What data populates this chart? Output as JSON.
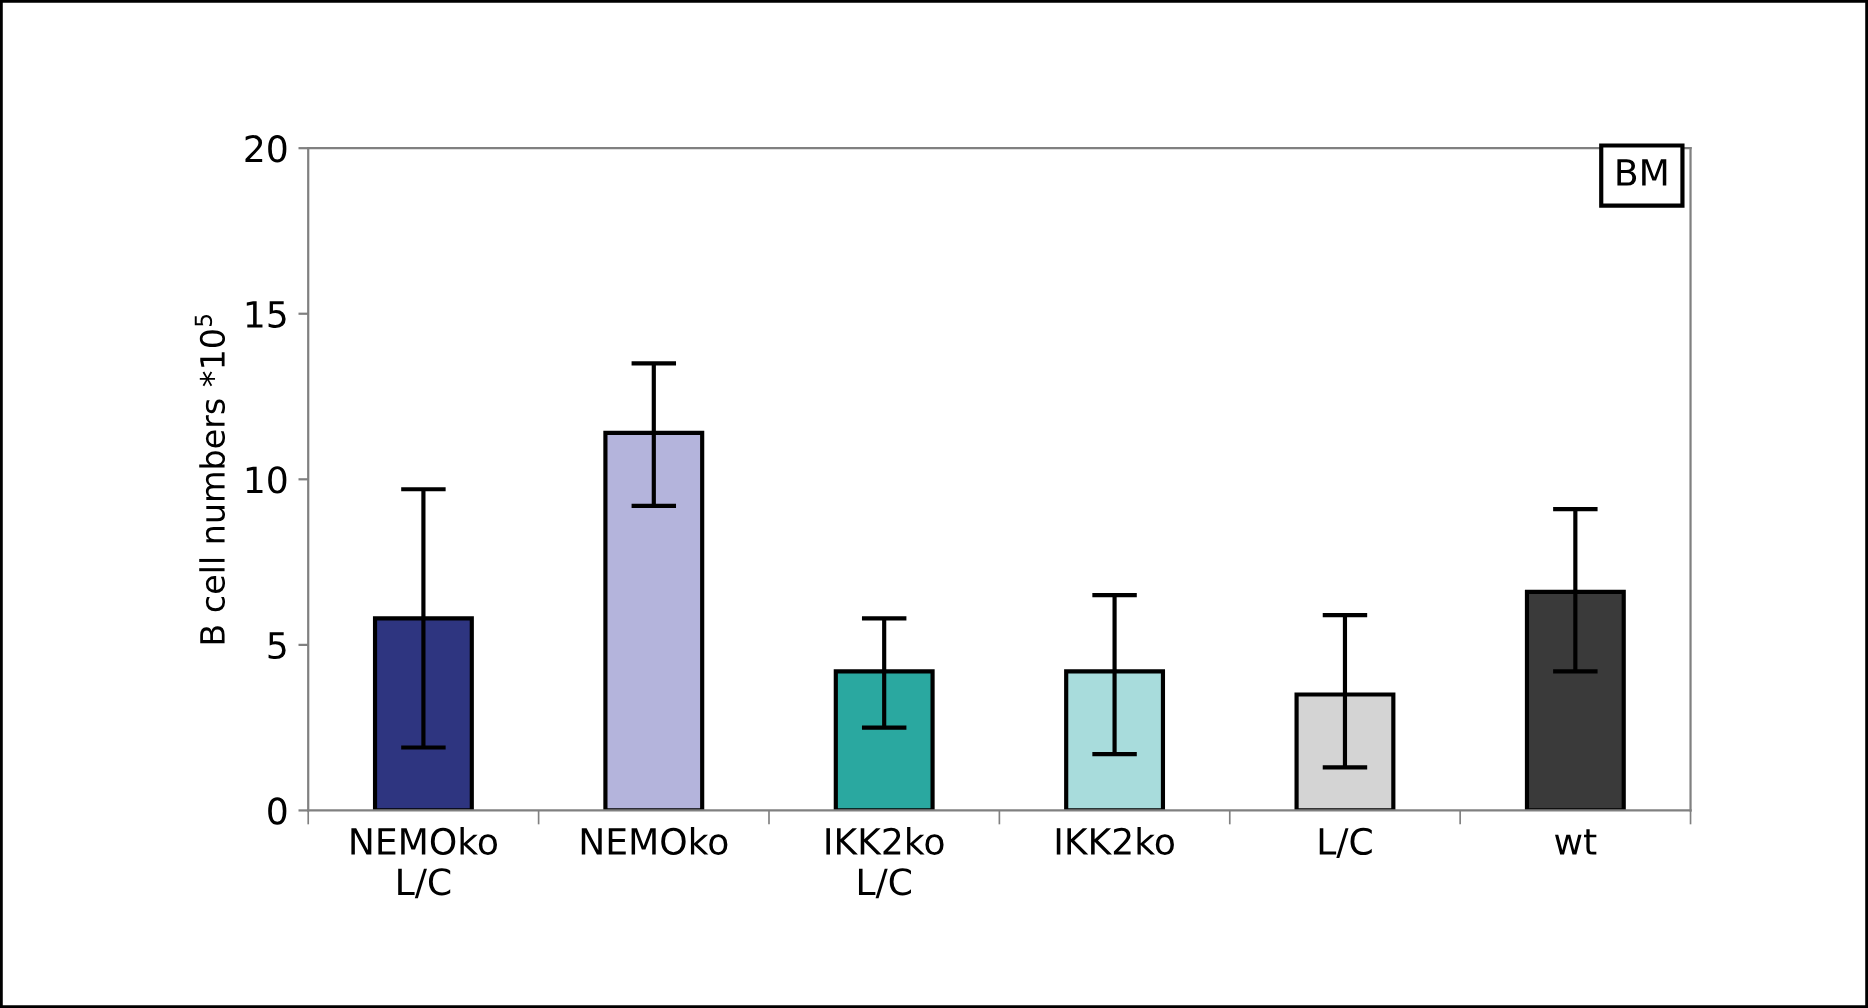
{
  "chart_data": {
    "type": "bar",
    "ylabel": "B cell numbers *10$^{5}$",
    "categories": [
      "NEMOko\nL/C",
      "NEMOko",
      "IKK2ko\nL/C",
      "IKK2ko",
      "L/C",
      "wt"
    ],
    "values": [
      5.8,
      11.4,
      4.2,
      4.2,
      3.5,
      6.6
    ],
    "errors": [
      [
        1.9,
        9.7
      ],
      [
        9.2,
        13.5
      ],
      [
        2.5,
        5.8
      ],
      [
        1.7,
        6.5
      ],
      [
        1.3,
        5.9
      ],
      [
        4.2,
        9.1
      ]
    ],
    "colors": [
      "#2e3580",
      "#b4b4dc",
      "#2aa8a0",
      "#a8dcdc",
      "#d4d4d4",
      "#3a3a3a"
    ],
    "ylim": [
      0,
      20
    ],
    "yticks": [
      0,
      5,
      10,
      15,
      20
    ],
    "annotations": [
      "BM"
    ],
    "grid": false,
    "legend": false
  }
}
